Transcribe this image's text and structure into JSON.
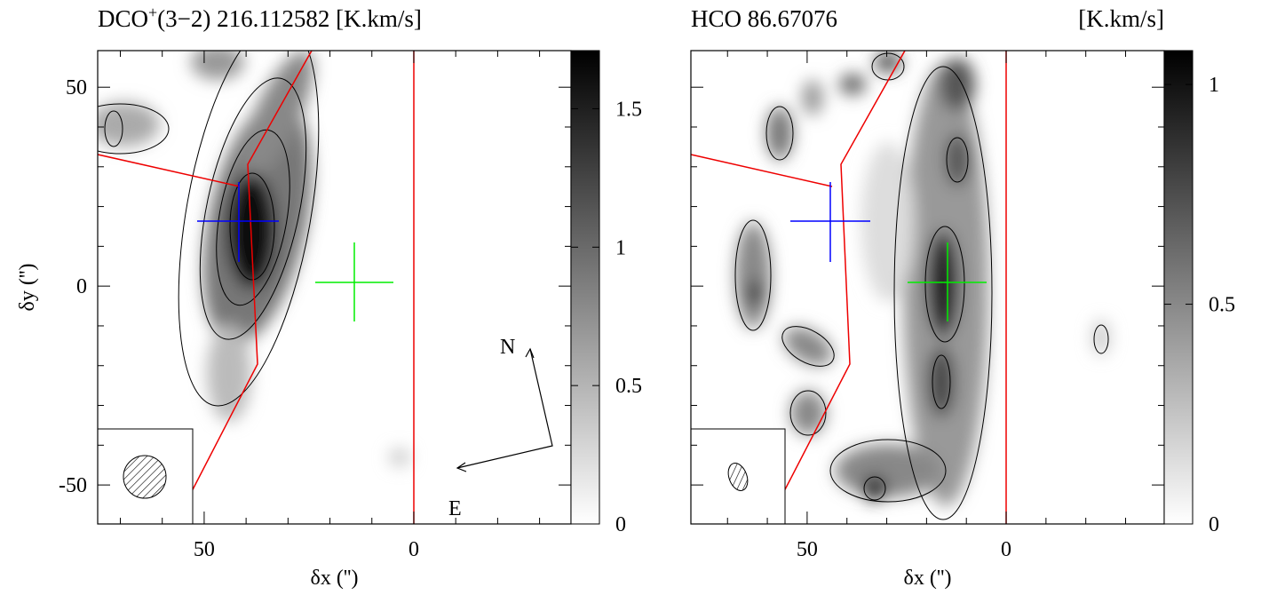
{
  "chart_data": [
    {
      "type": "map",
      "title": {
        "molecule": "DCO",
        "charge": "+",
        "rest": "(3−2) 216.112582 [K.km/s]"
      },
      "xlabel": "δx ('')",
      "ylabel": "δy ('')",
      "xlim": [
        75.4,
        -37.5
      ],
      "ylim": [
        -59.8,
        59.2
      ],
      "xticks": [
        50,
        0
      ],
      "yticks": [
        50,
        0,
        -50
      ],
      "xminorticks": [
        70,
        60,
        40,
        30,
        20,
        10,
        -10,
        -20,
        -30
      ],
      "yminorticks": [
        40,
        30,
        20,
        10,
        -10,
        -20,
        -30,
        -40
      ],
      "ytick_labels": true,
      "zlim": [
        0,
        1.71
      ],
      "zticks": [
        0,
        0.5,
        1,
        1.5
      ],
      "annotations": [
        "N",
        "E"
      ]
    },
    {
      "type": "map",
      "title": {
        "molecule": "HCO 86.67076",
        "unit": "[K.km/s]"
      },
      "xlabel": "δx ('')",
      "xlim": [
        79.2,
        -39.7
      ],
      "ylim": [
        -59.8,
        59.2
      ],
      "xticks": [
        50,
        0
      ],
      "yticks": [
        50,
        0,
        -50
      ],
      "xminorticks": [
        70,
        60,
        40,
        30,
        20,
        10,
        -10,
        -20,
        -30
      ],
      "yminorticks": [
        40,
        30,
        20,
        10,
        -10,
        -20,
        -30,
        -40
      ],
      "ytick_labels": false,
      "zlim": [
        0,
        1.077
      ],
      "zticks": [
        0,
        0.5,
        1
      ]
    }
  ]
}
